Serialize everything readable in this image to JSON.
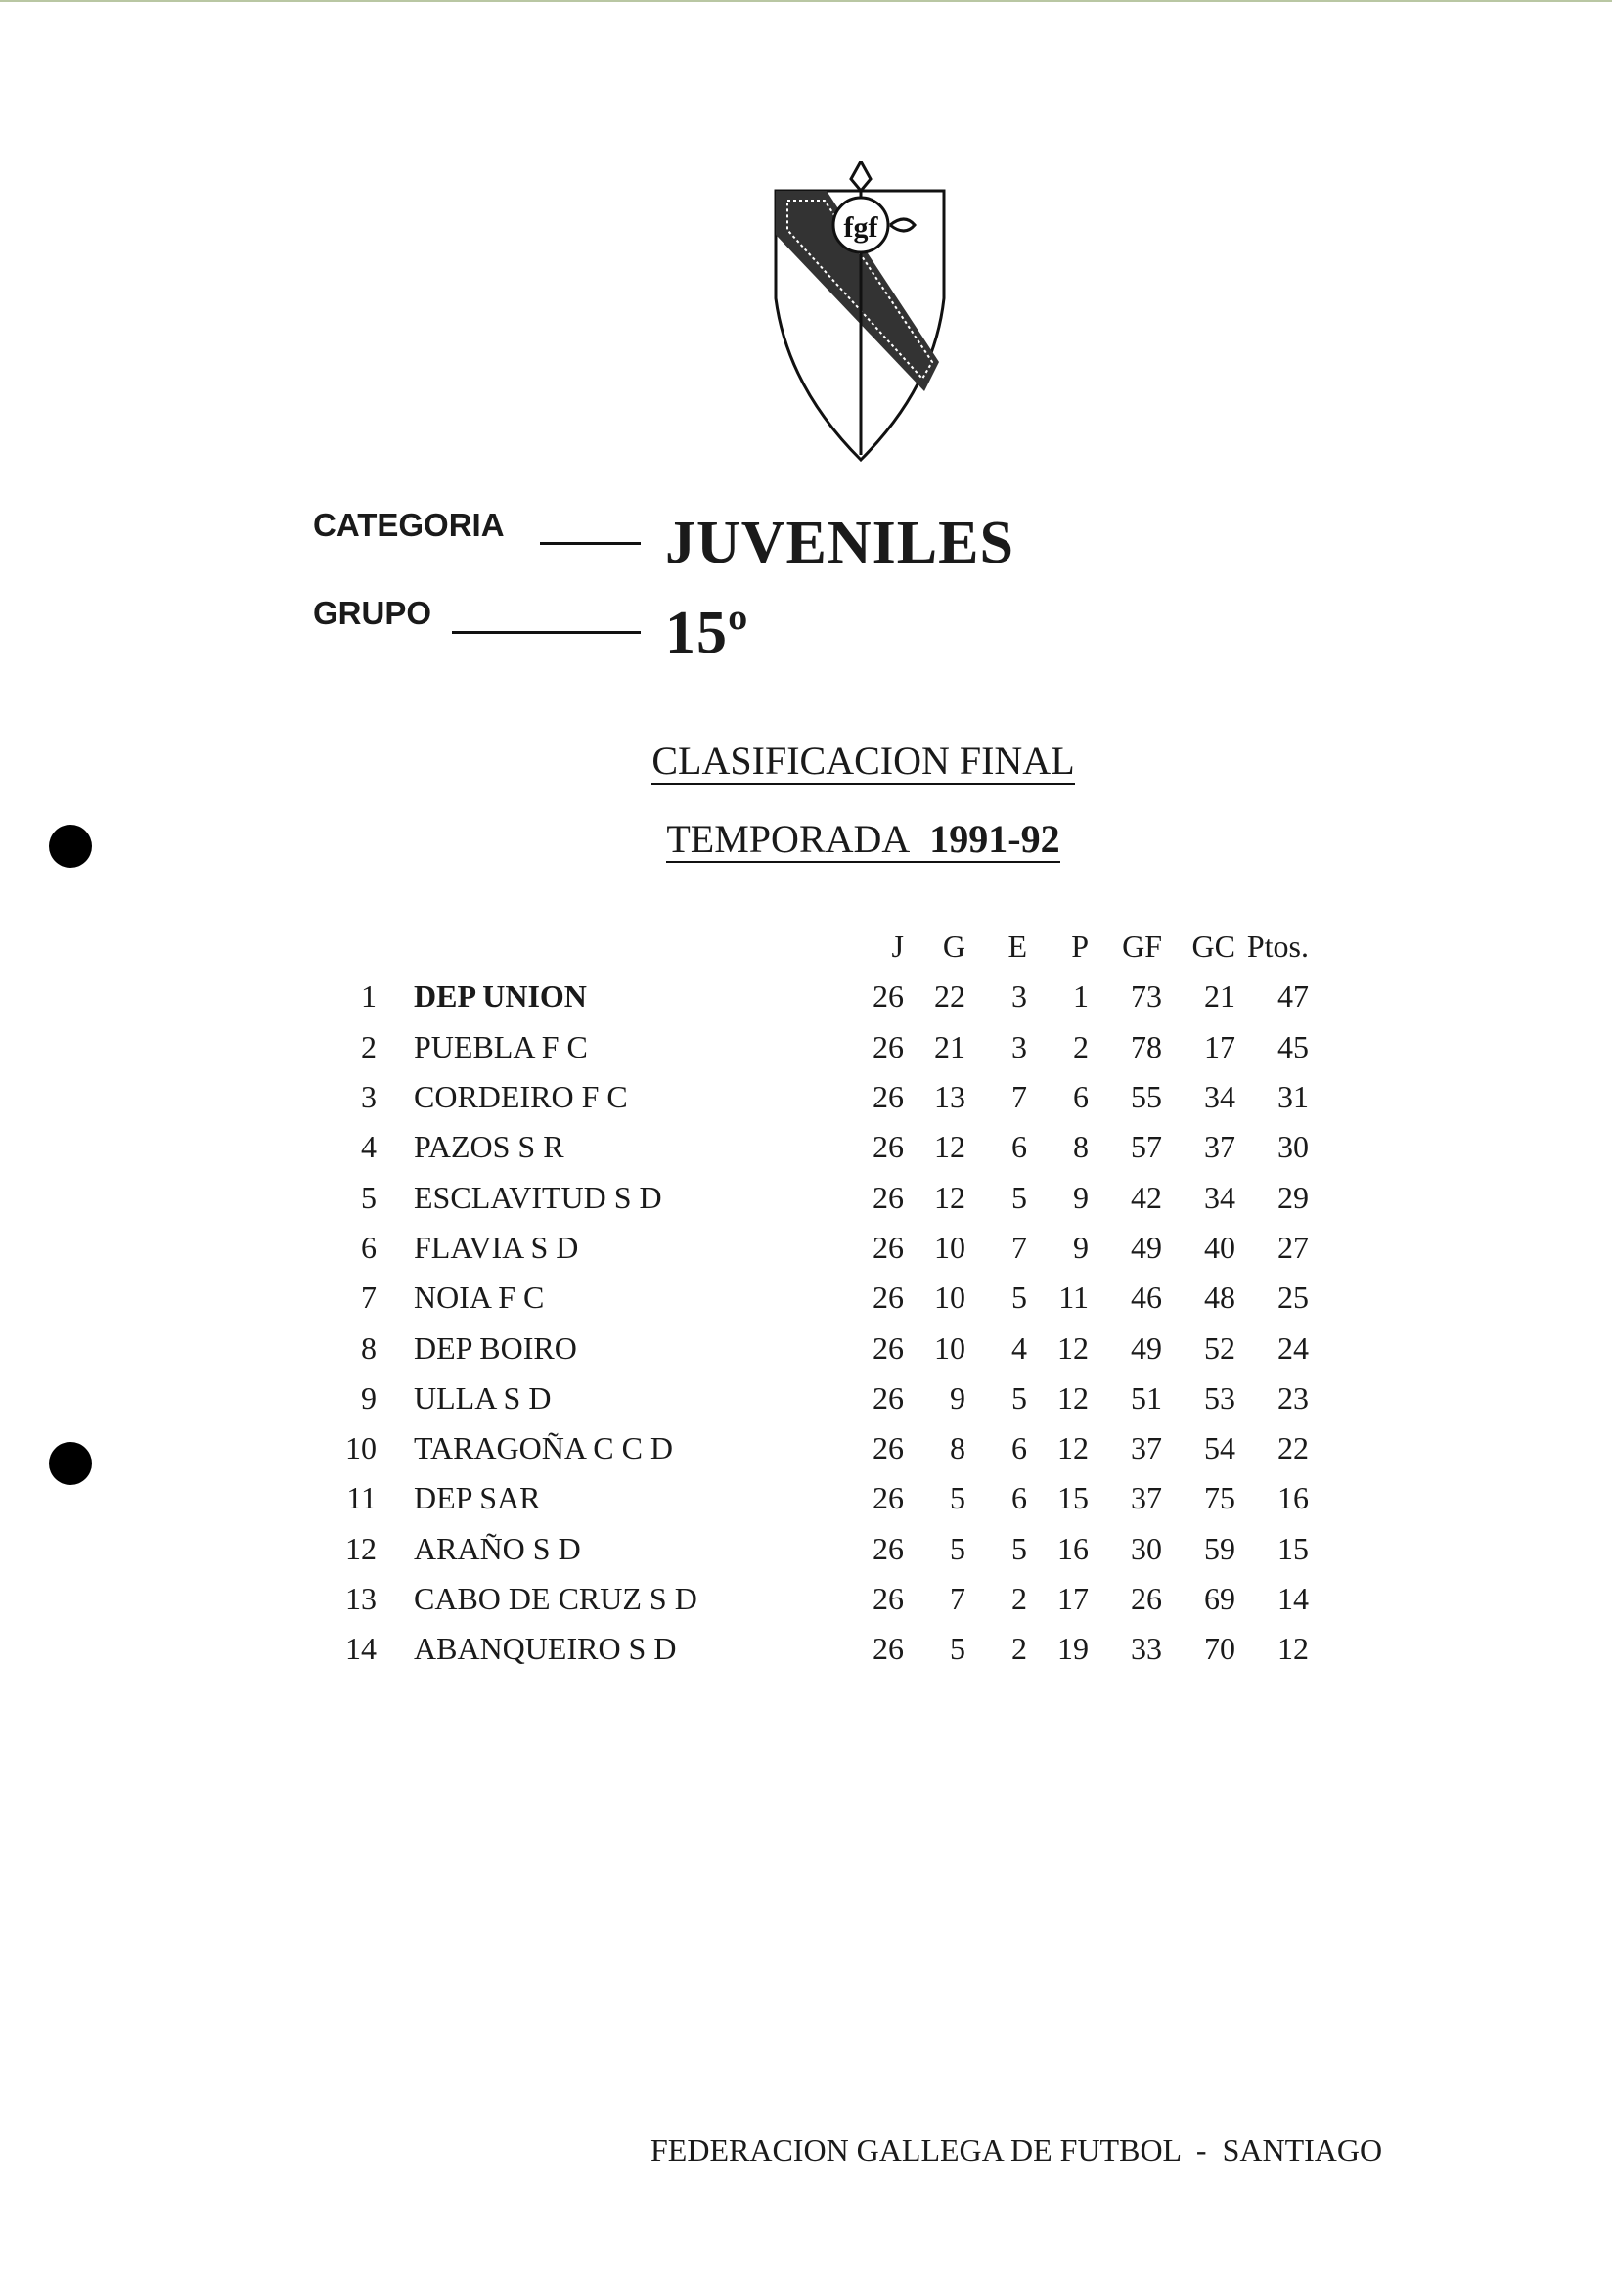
{
  "logo": {
    "name": "fgf-shield-logo",
    "text": "FGF"
  },
  "category": {
    "label": "CATEGORIA",
    "value": "JUVENILES"
  },
  "group": {
    "label": "GRUPO",
    "value": "15º"
  },
  "title": "CLASIFICACION FINAL",
  "season": {
    "label": "TEMPORADA",
    "value": "1991-92"
  },
  "table": {
    "headers": [
      "J",
      "G",
      "E",
      "P",
      "GF",
      "GC",
      "Ptos."
    ],
    "rows": [
      {
        "pos": "1",
        "team": "DEP UNION",
        "v": [
          "26",
          "22",
          "3",
          "1",
          "73",
          "21",
          "47"
        ]
      },
      {
        "pos": "2",
        "team": "PUEBLA F C",
        "v": [
          "26",
          "21",
          "3",
          "2",
          "78",
          "17",
          "45"
        ]
      },
      {
        "pos": "3",
        "team": "CORDEIRO F C",
        "v": [
          "26",
          "13",
          "7",
          "6",
          "55",
          "34",
          "31"
        ]
      },
      {
        "pos": "4",
        "team": "PAZOS S R",
        "v": [
          "26",
          "12",
          "6",
          "8",
          "57",
          "37",
          "30"
        ]
      },
      {
        "pos": "5",
        "team": "ESCLAVITUD S D",
        "v": [
          "26",
          "12",
          "5",
          "9",
          "42",
          "34",
          "29"
        ]
      },
      {
        "pos": "6",
        "team": "FLAVIA S D",
        "v": [
          "26",
          "10",
          "7",
          "9",
          "49",
          "40",
          "27"
        ]
      },
      {
        "pos": "7",
        "team": "NOIA F C",
        "v": [
          "26",
          "10",
          "5",
          "11",
          "46",
          "48",
          "25"
        ]
      },
      {
        "pos": "8",
        "team": "DEP BOIRO",
        "v": [
          "26",
          "10",
          "4",
          "12",
          "49",
          "52",
          "24"
        ]
      },
      {
        "pos": "9",
        "team": "ULLA S D",
        "v": [
          "26",
          "9",
          "5",
          "12",
          "51",
          "53",
          "23"
        ]
      },
      {
        "pos": "10",
        "team": "TARAGOÑA C C D",
        "v": [
          "26",
          "8",
          "6",
          "12",
          "37",
          "54",
          "22"
        ]
      },
      {
        "pos": "11",
        "team": "DEP SAR",
        "v": [
          "26",
          "5",
          "6",
          "15",
          "37",
          "75",
          "16"
        ]
      },
      {
        "pos": "12",
        "team": "ARAÑO S D",
        "v": [
          "26",
          "5",
          "5",
          "16",
          "30",
          "59",
          "15"
        ]
      },
      {
        "pos": "13",
        "team": "CABO DE CRUZ S D",
        "v": [
          "26",
          "7",
          "2",
          "17",
          "26",
          "69",
          "14"
        ]
      },
      {
        "pos": "14",
        "team": "ABANQUEIRO S D",
        "v": [
          "26",
          "5",
          "2",
          "19",
          "33",
          "70",
          "12"
        ]
      }
    ]
  },
  "footer": "FEDERACION GALLEGA DE FUTBOL  -  SANTIAGO"
}
